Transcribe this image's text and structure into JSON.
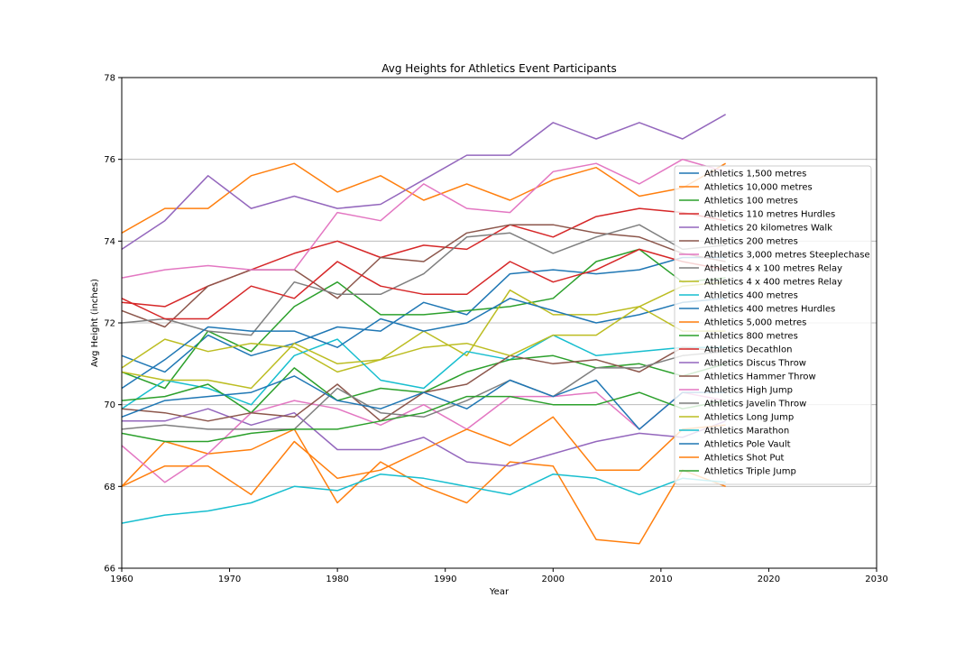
{
  "chart_data": {
    "type": "line",
    "title": "Avg Heights for Athletics Event Participants",
    "xlabel": "Year",
    "ylabel": "Avg Height (inches)",
    "xlim": [
      1960,
      2030
    ],
    "ylim": [
      66,
      78
    ],
    "xticks": [
      1960,
      1970,
      1980,
      1990,
      2000,
      2010,
      2020,
      2030
    ],
    "yticks": [
      66,
      68,
      70,
      72,
      74,
      76,
      78
    ],
    "grid": "y-axis",
    "legend_position": "right",
    "x": [
      1960,
      1964,
      1968,
      1972,
      1976,
      1980,
      1984,
      1988,
      1992,
      1996,
      2000,
      2004,
      2008,
      2012,
      2016
    ],
    "series": [
      {
        "name": "Athletics 1,500 metres",
        "color": "#1f77b4",
        "values": [
          71.2,
          70.8,
          71.7,
          71.2,
          71.5,
          71.9,
          71.8,
          72.5,
          72.2,
          73.2,
          73.3,
          73.2,
          73.3,
          73.6,
          73.6
        ]
      },
      {
        "name": "Athletics 10,000 metres",
        "color": "#ff7f0e",
        "values": [
          68.0,
          69.1,
          68.8,
          68.9,
          69.4,
          67.6,
          68.6,
          68.0,
          67.6,
          68.6,
          68.5,
          66.7,
          66.6,
          68.4,
          68.0
        ]
      },
      {
        "name": "Athletics 100 metres",
        "color": "#2ca02c",
        "values": [
          70.8,
          70.4,
          71.8,
          71.3,
          72.4,
          73.0,
          72.2,
          72.2,
          72.3,
          72.4,
          72.6,
          73.5,
          73.8,
          73.0,
          73.1
        ]
      },
      {
        "name": "Athletics 110 metres Hurdles",
        "color": "#d62728",
        "values": [
          72.5,
          72.4,
          72.9,
          73.3,
          73.7,
          74.0,
          73.6,
          73.9,
          73.8,
          74.4,
          74.1,
          74.6,
          74.8,
          74.7,
          74.5
        ]
      },
      {
        "name": "Athletics 20 kilometres Walk",
        "color": "#9467bd",
        "values": [
          69.6,
          69.6,
          69.9,
          69.5,
          69.8,
          68.9,
          68.9,
          69.2,
          68.6,
          68.5,
          68.8,
          69.1,
          69.3,
          69.2,
          69.6
        ]
      },
      {
        "name": "Athletics 200 metres",
        "color": "#8c564b",
        "values": [
          72.3,
          71.9,
          72.9,
          73.3,
          73.3,
          72.6,
          73.6,
          73.5,
          74.2,
          74.4,
          74.4,
          74.2,
          74.1,
          73.7,
          73.5
        ]
      },
      {
        "name": "Athletics 3,000 metres Steeplechase",
        "color": "#e377c2",
        "values": [
          69.0,
          68.1,
          68.8,
          69.8,
          70.1,
          69.9,
          69.5,
          70.0,
          69.4,
          70.2,
          70.2,
          70.3,
          69.4,
          70.3,
          70.1
        ]
      },
      {
        "name": "Athletics 4 x 100 metres Relay",
        "color": "#7f7f7f",
        "values": [
          72.0,
          72.1,
          71.8,
          71.7,
          73.0,
          72.7,
          72.7,
          73.2,
          74.1,
          74.2,
          73.7,
          74.1,
          74.4,
          73.8,
          73.9
        ]
      },
      {
        "name": "Athletics 4 x 400 metres Relay",
        "color": "#bcbd22",
        "values": [
          70.9,
          71.6,
          71.3,
          71.5,
          71.4,
          70.8,
          71.1,
          71.8,
          71.2,
          72.8,
          72.2,
          72.2,
          72.4,
          72.9,
          73.0
        ]
      },
      {
        "name": "Athletics 400 metres",
        "color": "#17becf",
        "values": [
          69.9,
          70.6,
          70.4,
          70.0,
          71.2,
          71.6,
          70.6,
          70.4,
          71.3,
          71.1,
          71.7,
          71.2,
          71.3,
          71.4,
          71.4
        ]
      },
      {
        "name": "Athletics 400 metres Hurdles",
        "color": "#1f77b4",
        "values": [
          70.4,
          71.1,
          71.9,
          71.8,
          71.8,
          71.4,
          72.1,
          71.8,
          72.0,
          72.6,
          72.3,
          72.0,
          72.2,
          72.5,
          72.6
        ]
      },
      {
        "name": "Athletics 5,000 metres",
        "color": "#ff7f0e",
        "values": [
          74.2,
          74.8,
          74.8,
          75.6,
          75.9,
          75.2,
          75.6,
          75.0,
          75.4,
          75.0,
          75.5,
          75.8,
          75.1,
          75.3,
          75.9
        ]
      },
      {
        "name": "Athletics 800 metres",
        "color": "#2ca02c",
        "values": [
          70.1,
          70.2,
          70.5,
          69.8,
          70.9,
          70.1,
          70.4,
          70.3,
          70.8,
          71.1,
          71.2,
          70.9,
          71.0,
          70.7,
          71.0
        ]
      },
      {
        "name": "Athletics Decathlon",
        "color": "#d62728",
        "values": [
          72.6,
          72.1,
          72.1,
          72.9,
          72.6,
          73.5,
          72.9,
          72.7,
          72.7,
          73.5,
          73.0,
          73.3,
          73.8,
          73.5,
          73.3
        ]
      },
      {
        "name": "Athletics Discus Throw",
        "color": "#9467bd",
        "values": [
          73.8,
          74.5,
          75.6,
          74.8,
          75.1,
          74.8,
          74.9,
          75.5,
          76.1,
          76.1,
          76.9,
          76.5,
          76.9,
          76.5,
          77.1
        ]
      },
      {
        "name": "Athletics Hammer Throw",
        "color": "#8c564b",
        "values": [
          69.9,
          69.8,
          69.6,
          69.8,
          69.7,
          70.5,
          69.6,
          70.3,
          70.5,
          71.2,
          71.0,
          71.1,
          70.8,
          71.4,
          71.3
        ]
      },
      {
        "name": "Athletics High Jump",
        "color": "#e377c2",
        "values": [
          73.1,
          73.3,
          73.4,
          73.3,
          73.3,
          74.7,
          74.5,
          75.4,
          74.8,
          74.7,
          75.7,
          75.9,
          75.4,
          76.0,
          75.7
        ]
      },
      {
        "name": "Athletics Javelin Throw",
        "color": "#7f7f7f",
        "values": [
          69.4,
          69.5,
          69.4,
          69.4,
          69.4,
          70.4,
          69.8,
          69.7,
          70.1,
          70.6,
          70.2,
          70.9,
          70.9,
          71.2,
          71.3
        ]
      },
      {
        "name": "Athletics Long Jump",
        "color": "#bcbd22",
        "values": [
          70.8,
          70.6,
          70.6,
          70.4,
          71.5,
          71.0,
          71.1,
          71.4,
          71.5,
          71.2,
          71.7,
          71.7,
          72.4,
          71.8,
          71.8
        ]
      },
      {
        "name": "Athletics Marathon",
        "color": "#17becf",
        "values": [
          67.1,
          67.3,
          67.4,
          67.6,
          68.0,
          67.9,
          68.3,
          68.2,
          68.0,
          67.8,
          68.3,
          68.2,
          67.8,
          68.2,
          68.1
        ]
      },
      {
        "name": "Athletics Pole Vault",
        "color": "#1f77b4",
        "values": [
          69.7,
          70.1,
          70.2,
          70.3,
          70.7,
          70.1,
          69.9,
          70.3,
          69.9,
          70.6,
          70.2,
          70.6,
          69.4,
          70.3,
          70.3
        ]
      },
      {
        "name": "Athletics Shot Put",
        "color": "#ff7f0e",
        "values": [
          68.0,
          68.5,
          68.5,
          67.8,
          69.1,
          68.2,
          68.4,
          68.9,
          69.4,
          69.0,
          69.7,
          68.4,
          68.4,
          69.4,
          69.5
        ]
      },
      {
        "name": "Athletics Triple Jump",
        "color": "#2ca02c",
        "values": [
          69.3,
          69.1,
          69.1,
          69.3,
          69.4,
          69.4,
          69.6,
          69.8,
          70.2,
          70.2,
          70.0,
          70.0,
          70.3,
          69.9,
          70.1
        ]
      }
    ]
  }
}
